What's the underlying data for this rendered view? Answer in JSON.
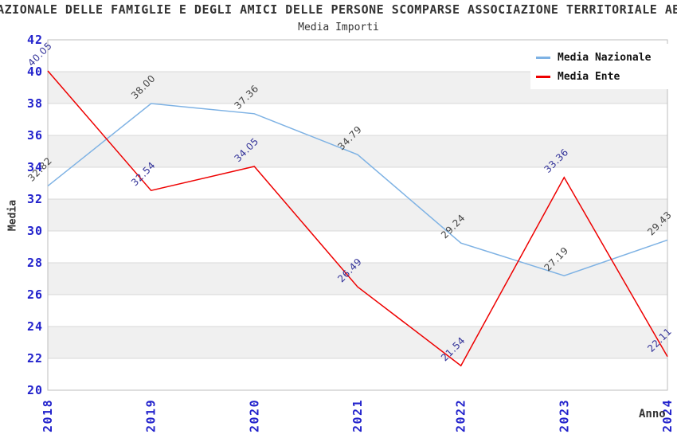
{
  "header": {
    "title": "I NAZIONALE DELLE FAMIGLIE E DEGLI AMICI DELLE PERSONE SCOMPARSE ASSOCIAZIONE TERRITORIALE ABRUZ",
    "subtitle": "Media Importi"
  },
  "legend": {
    "position": "top-right",
    "items": [
      {
        "label": "Media Nazionale",
        "color": "#7eb2e4"
      },
      {
        "label": "Media Ente",
        "color": "#ee0000"
      }
    ]
  },
  "axes": {
    "x_title": "Anno",
    "y_title": "Media",
    "x_ticks": [
      "2018",
      "2019",
      "2020",
      "2021",
      "2022",
      "2023",
      "2024"
    ],
    "y_ticks": [
      20,
      22,
      24,
      26,
      28,
      30,
      32,
      34,
      36,
      38,
      40,
      42
    ],
    "tick_color": "#2222cc"
  },
  "chart_data": {
    "type": "line",
    "title": "Media Importi",
    "xlabel": "Anno",
    "ylabel": "Media",
    "x": [
      2018,
      2019,
      2020,
      2021,
      2022,
      2023,
      2024
    ],
    "ylim": [
      20,
      42
    ],
    "ytick_step": 2,
    "grid": "horizontal-bands",
    "band_color": "#f0f0f0",
    "gridline_color": "#d9d9d9",
    "border_color": "#bdbdbd",
    "legend_position": "top-right",
    "series": [
      {
        "name": "Media Nazionale",
        "color": "#7eb2e4",
        "label_color": "#444444",
        "values": [
          32.82,
          38.0,
          37.36,
          34.79,
          29.24,
          27.19,
          29.43
        ],
        "labels": [
          "32.82",
          "38.00",
          "37.36",
          "34.79",
          "29.24",
          "27.19",
          "29.43"
        ]
      },
      {
        "name": "Media Ente",
        "color": "#ee0000",
        "label_color": "#333399",
        "values": [
          40.05,
          32.54,
          34.05,
          26.49,
          21.54,
          33.36,
          22.11
        ],
        "labels": [
          "40.05",
          "32.54",
          "34.05",
          "26.49",
          "21.54",
          "33.36",
          "22.11"
        ]
      }
    ]
  }
}
